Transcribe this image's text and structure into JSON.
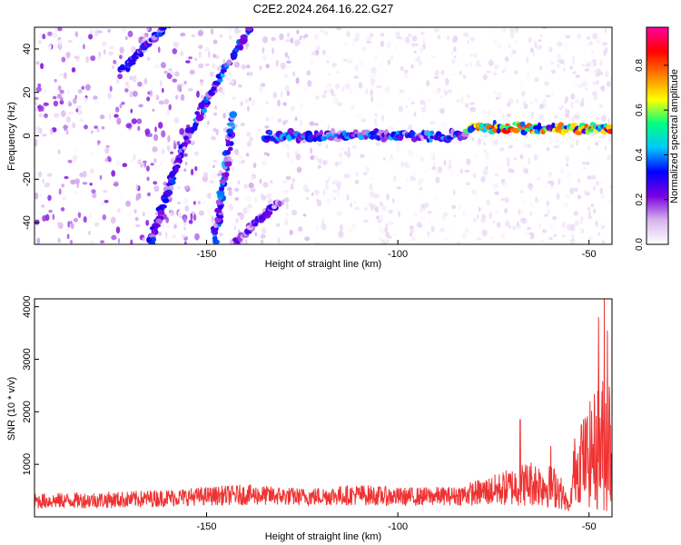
{
  "title": "C2E2.2024.264.16.22.G27",
  "chart_data": [
    {
      "type": "heatmap",
      "xlabel": "Height of straight line (km)",
      "ylabel": "Frequency (Hz)",
      "xlim": [
        -195,
        -44
      ],
      "ylim": [
        -50,
        50
      ],
      "xticks": [
        -150,
        -100,
        -50
      ],
      "yticks": [
        -40,
        -20,
        0,
        20,
        40
      ],
      "colorbar": {
        "label": "Normalized spectral amplitude",
        "range": [
          0,
          0.97
        ],
        "ticks": [
          0.0,
          0.2,
          0.4,
          0.6,
          0.8
        ],
        "tick_labels": [
          "0.0",
          "0.2",
          "0.4",
          "0.6",
          "0.8"
        ],
        "colors": [
          "#ffffff",
          "#d8b4ee",
          "#7a00e0",
          "#0000ff",
          "#00c8ff",
          "#00ff80",
          "#ffff00",
          "#ff8000",
          "#ff0000",
          "#ff00a0"
        ]
      },
      "features": [
        {
          "kind": "line",
          "x": [
            -155,
            -138
          ],
          "y": [
            0,
            52
          ],
          "amplitude": 0.3
        },
        {
          "kind": "line",
          "x": [
            -155,
            -165
          ],
          "y": [
            0,
            -50
          ],
          "amplitude": 0.25
        },
        {
          "kind": "line",
          "x": [
            -148,
            -143
          ],
          "y": [
            -50,
            10
          ],
          "amplitude": 0.3
        },
        {
          "kind": "line",
          "x": [
            -143,
            -131
          ],
          "y": [
            -50,
            -30
          ],
          "amplitude": 0.2
        },
        {
          "kind": "line",
          "x": [
            -172,
            -160
          ],
          "y": [
            30,
            52
          ],
          "amplitude": 0.25
        },
        {
          "kind": "band",
          "x": [
            -135,
            -82
          ],
          "y": [
            -1,
            1
          ],
          "amplitude": 0.3
        },
        {
          "kind": "band",
          "x": [
            -82,
            -44
          ],
          "y": [
            2.5,
            4.5
          ],
          "amplitude": 0.6
        }
      ]
    },
    {
      "type": "line",
      "xlabel": "Height of straight line (km)",
      "ylabel": "SNR (10 * v/v)",
      "xlim": [
        -195,
        -44
      ],
      "ylim": [
        0,
        4150
      ],
      "xticks": [
        -150,
        -100,
        -50
      ],
      "yticks": [
        1000,
        2000,
        3000,
        4000
      ],
      "color": "#ee3333",
      "profile": [
        {
          "x": -195,
          "mean": 300,
          "spread": 150
        },
        {
          "x": -170,
          "mean": 330,
          "spread": 160
        },
        {
          "x": -155,
          "mean": 380,
          "spread": 170
        },
        {
          "x": -140,
          "mean": 420,
          "spread": 200
        },
        {
          "x": -125,
          "mean": 380,
          "spread": 170
        },
        {
          "x": -110,
          "mean": 420,
          "spread": 200
        },
        {
          "x": -100,
          "mean": 380,
          "spread": 180
        },
        {
          "x": -85,
          "mean": 400,
          "spread": 180
        },
        {
          "x": -75,
          "mean": 500,
          "spread": 300
        },
        {
          "x": -65,
          "mean": 650,
          "spread": 450
        },
        {
          "x": -58,
          "mean": 550,
          "spread": 400
        },
        {
          "x": -55,
          "mean": 150,
          "spread": 60
        },
        {
          "x": -54,
          "mean": 900,
          "spread": 600
        },
        {
          "x": -48,
          "mean": 1300,
          "spread": 1200
        },
        {
          "x": -44,
          "mean": 1500,
          "spread": 1500
        }
      ],
      "peaks": [
        {
          "x": -68,
          "y": 1850
        },
        {
          "x": -60,
          "y": 1350
        },
        {
          "x": -52,
          "y": 1750
        },
        {
          "x": -47.5,
          "y": 3800
        },
        {
          "x": -46,
          "y": 4150
        },
        {
          "x": -45.2,
          "y": 3550
        }
      ]
    }
  ]
}
